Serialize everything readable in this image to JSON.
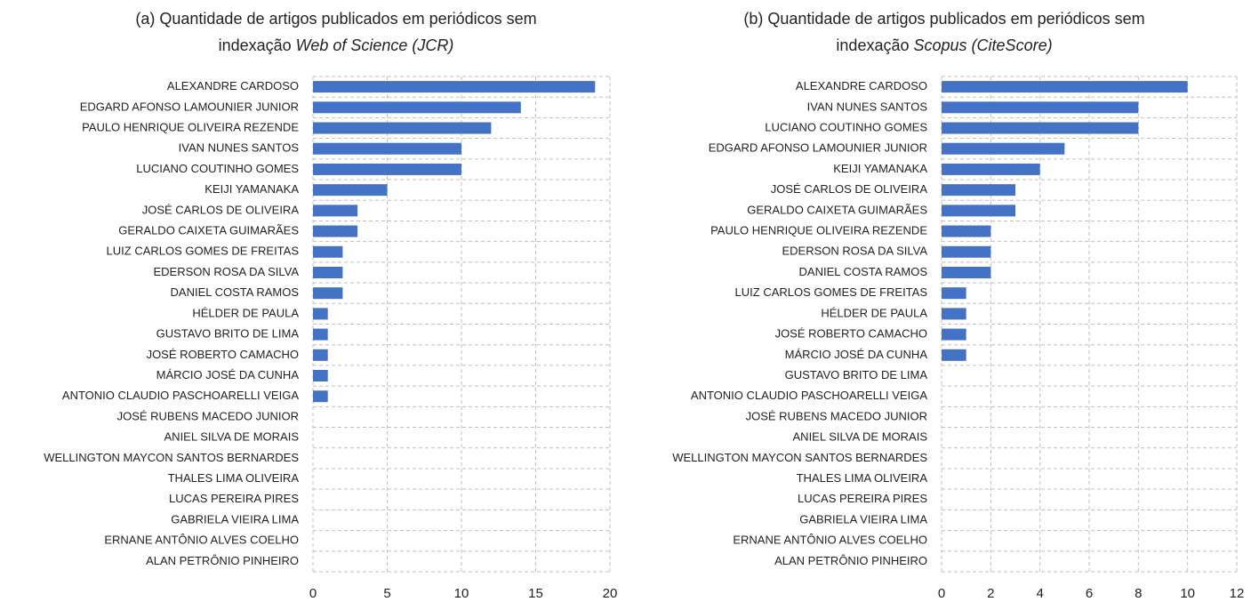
{
  "chart_data": [
    {
      "type": "barh",
      "title": [
        "(a) Quantidade de artigos publicados em periódicos sem",
        "indexação",
        "Web of Science (JCR)"
      ],
      "categories": [
        "ALEXANDRE CARDOSO",
        "EDGARD AFONSO LAMOUNIER JUNIOR",
        "PAULO HENRIQUE OLIVEIRA REZENDE",
        "IVAN NUNES SANTOS",
        "LUCIANO COUTINHO GOMES",
        "KEIJI YAMANAKA",
        "JOSÉ CARLOS DE OLIVEIRA",
        "GERALDO CAIXETA GUIMARÃES",
        "LUIZ CARLOS GOMES DE FREITAS",
        "EDERSON ROSA DA SILVA",
        "DANIEL COSTA RAMOS",
        "HÉLDER DE PAULA",
        "GUSTAVO BRITO DE LIMA",
        "JOSÉ ROBERTO CAMACHO",
        "MÁRCIO JOSÉ DA CUNHA",
        "ANTONIO CLAUDIO PASCHOARELLI VEIGA",
        "JOSÉ RUBENS MACEDO JUNIOR",
        "ANIEL SILVA DE MORAIS",
        "WELLINGTON MAYCON SANTOS BERNARDES",
        "THALES LIMA OLIVEIRA",
        "LUCAS PEREIRA PIRES",
        "GABRIELA VIEIRA LIMA",
        "ERNANE ANTÔNIO ALVES COELHO",
        "ALAN PETRÔNIO PINHEIRO"
      ],
      "values": [
        19,
        14,
        12,
        10,
        10,
        5,
        3,
        3,
        2,
        2,
        2,
        1,
        1,
        1,
        1,
        1,
        0,
        0,
        0,
        0,
        0,
        0,
        0,
        0
      ],
      "color": "#4472c4",
      "xlim": [
        0,
        20
      ],
      "xticks": [
        0,
        5,
        10,
        15,
        20
      ],
      "grid": true
    },
    {
      "type": "barh",
      "title": [
        "(b) Quantidade de artigos publicados em periódicos sem",
        "indexação",
        "Scopus (CiteScore)"
      ],
      "categories": [
        "ALEXANDRE CARDOSO",
        "IVAN NUNES SANTOS",
        "LUCIANO COUTINHO GOMES",
        "EDGARD AFONSO LAMOUNIER JUNIOR",
        "KEIJI YAMANAKA",
        "JOSÉ CARLOS DE OLIVEIRA",
        "GERALDO CAIXETA GUIMARÃES",
        "PAULO HENRIQUE OLIVEIRA REZENDE",
        "EDERSON ROSA DA SILVA",
        "DANIEL COSTA RAMOS",
        "LUIZ CARLOS GOMES DE FREITAS",
        "HÉLDER DE PAULA",
        "JOSÉ ROBERTO CAMACHO",
        "MÁRCIO JOSÉ DA CUNHA",
        "GUSTAVO BRITO DE LIMA",
        "ANTONIO CLAUDIO PASCHOARELLI VEIGA",
        "JOSÉ RUBENS MACEDO JUNIOR",
        "ANIEL SILVA DE MORAIS",
        "WELLINGTON MAYCON SANTOS BERNARDES",
        "THALES LIMA OLIVEIRA",
        "LUCAS PEREIRA PIRES",
        "GABRIELA VIEIRA LIMA",
        "ERNANE ANTÔNIO ALVES COELHO",
        "ALAN PETRÔNIO PINHEIRO"
      ],
      "values": [
        10,
        8,
        8,
        5,
        4,
        3,
        3,
        2,
        2,
        2,
        1,
        1,
        1,
        1,
        0,
        0,
        0,
        0,
        0,
        0,
        0,
        0,
        0,
        0
      ],
      "color": "#4472c4",
      "xlim": [
        0,
        12
      ],
      "xticks": [
        0,
        2,
        4,
        6,
        8,
        10,
        12
      ],
      "grid": true
    }
  ]
}
